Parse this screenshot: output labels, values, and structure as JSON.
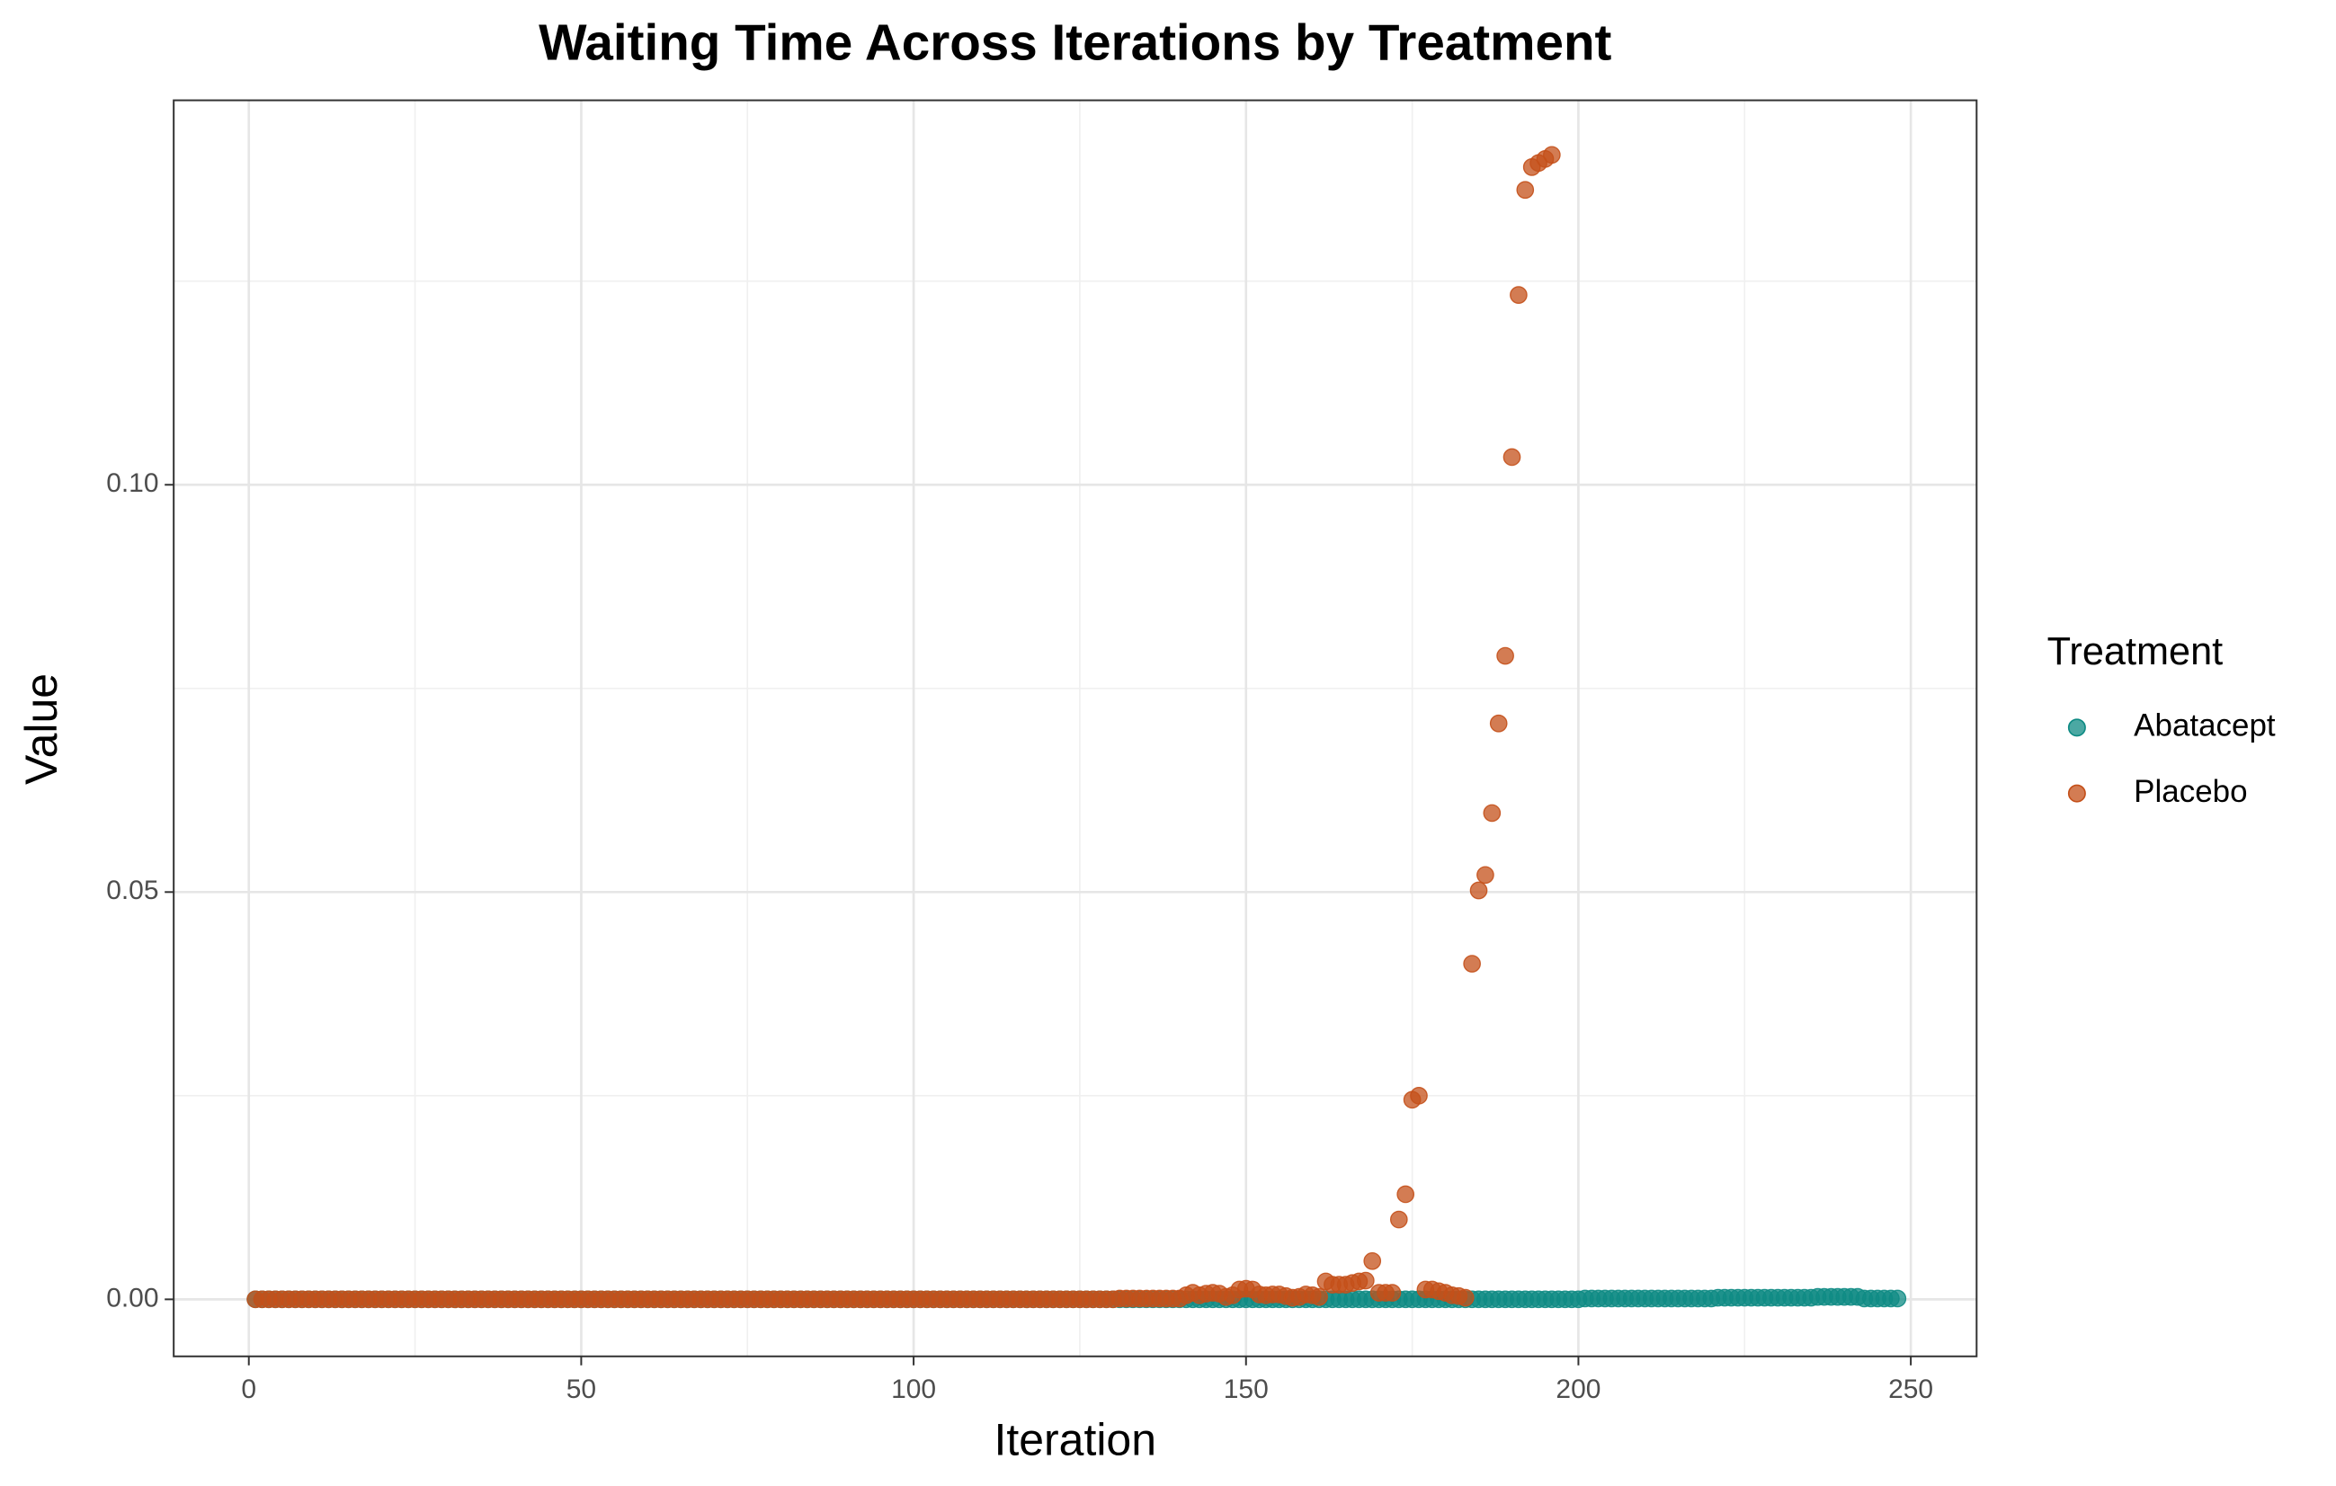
{
  "chart_data": {
    "type": "scatter",
    "title": "Waiting Time Across Iterations by Treatment",
    "x_label": "Iteration",
    "y_label": "Value",
    "legend_title": "Treatment",
    "legend_position": "right",
    "grid": true,
    "minor_grid": true,
    "xlim": [
      -11.3,
      259.9
    ],
    "xticks": [
      0,
      50,
      100,
      150,
      200,
      250
    ],
    "ylim": [
      -0.007,
      0.1472
    ],
    "yticks": [
      {
        "value": 0,
        "label": "0.00"
      },
      {
        "value": 0.05,
        "label": "0.05"
      },
      {
        "value": 0.1,
        "label": "0.10"
      }
    ],
    "series": [
      {
        "name": "Abatacept",
        "color": "#0f8b84",
        "x": [
          1,
          2,
          3,
          4,
          5,
          6,
          7,
          8,
          9,
          10,
          11,
          12,
          13,
          14,
          15,
          16,
          17,
          18,
          19,
          20,
          21,
          22,
          23,
          24,
          25,
          26,
          27,
          28,
          29,
          30,
          31,
          32,
          33,
          34,
          35,
          36,
          37,
          38,
          39,
          40,
          41,
          42,
          43,
          44,
          45,
          46,
          47,
          48,
          49,
          50,
          51,
          52,
          53,
          54,
          55,
          56,
          57,
          58,
          59,
          60,
          61,
          62,
          63,
          64,
          65,
          66,
          67,
          68,
          69,
          70,
          71,
          72,
          73,
          74,
          75,
          76,
          77,
          78,
          79,
          80,
          81,
          82,
          83,
          84,
          85,
          86,
          87,
          88,
          89,
          90,
          91,
          92,
          93,
          94,
          95,
          96,
          97,
          98,
          99,
          100,
          101,
          102,
          103,
          104,
          105,
          106,
          107,
          108,
          109,
          110,
          111,
          112,
          113,
          114,
          115,
          116,
          117,
          118,
          119,
          120,
          121,
          122,
          123,
          124,
          125,
          126,
          127,
          128,
          129,
          130,
          131,
          132,
          133,
          134,
          135,
          136,
          137,
          138,
          139,
          140,
          141,
          142,
          143,
          144,
          145,
          146,
          147,
          148,
          149,
          150,
          151,
          152,
          153,
          154,
          155,
          156,
          157,
          158,
          159,
          160,
          161,
          162,
          163,
          164,
          165,
          166,
          167,
          168,
          169,
          170,
          171,
          172,
          173,
          174,
          175,
          176,
          177,
          178,
          179,
          180,
          181,
          182,
          183,
          184,
          185,
          186,
          187,
          188,
          189,
          190,
          191,
          192,
          193,
          194,
          195,
          196,
          197,
          198,
          199,
          200,
          201,
          202,
          203,
          204,
          205,
          206,
          207,
          208,
          209,
          210,
          211,
          212,
          213,
          214,
          215,
          216,
          217,
          218,
          219,
          220,
          221,
          222,
          223,
          224,
          225,
          226,
          227,
          228,
          229,
          230,
          231,
          232,
          233,
          234,
          235,
          236,
          237,
          238,
          239,
          240,
          241,
          242,
          243,
          244,
          245,
          246,
          247,
          248
        ],
        "values": [
          0,
          0,
          0,
          0,
          0,
          0,
          0,
          0,
          0,
          0,
          0,
          0,
          0,
          0,
          0,
          0,
          0,
          0,
          0,
          0,
          0,
          0,
          0,
          0,
          0,
          0,
          0,
          0,
          0,
          0,
          0,
          0,
          0,
          0,
          0,
          0,
          0,
          0,
          0,
          0,
          0,
          0,
          0,
          0,
          0,
          0,
          0,
          0,
          0,
          0,
          0,
          0,
          0,
          0,
          0,
          0,
          0,
          0,
          0,
          0,
          0,
          0,
          0,
          0,
          0,
          0,
          0,
          0,
          0,
          0,
          0,
          0,
          0,
          0,
          0,
          0,
          0,
          0,
          0,
          0,
          0,
          0,
          0,
          0,
          0,
          0,
          0,
          0,
          0,
          0,
          0,
          0,
          0,
          0,
          0,
          0,
          0,
          0,
          0,
          0,
          0,
          0,
          0,
          0,
          0,
          0,
          0,
          0,
          0,
          0,
          0,
          0,
          0,
          0,
          0,
          0,
          0,
          0,
          0,
          0,
          0,
          0,
          0,
          0,
          0,
          0,
          0,
          0,
          0,
          0,
          0,
          0,
          0,
          0,
          0,
          0,
          0,
          0,
          0,
          0,
          0,
          0,
          0,
          0,
          0,
          0,
          0,
          0,
          0,
          0,
          0,
          0,
          0,
          0,
          0,
          0,
          0,
          0,
          0,
          0,
          0,
          0,
          0,
          0,
          0,
          0,
          0,
          0,
          0,
          0,
          0,
          0,
          0,
          0,
          0,
          0,
          0,
          0,
          0,
          0,
          0,
          0,
          0,
          0,
          0,
          0,
          0,
          0,
          0,
          0,
          0,
          0,
          0,
          0,
          0,
          0,
          0,
          0,
          0,
          0,
          0.0001,
          0.0001,
          0.0001,
          0.0001,
          0.0001,
          0.0001,
          0.0001,
          0.0001,
          0.0001,
          0.0001,
          0.0001,
          0.0001,
          0.0001,
          0.0001,
          0.0001,
          0.0001,
          0.0001,
          0.0001,
          0.0001,
          0.0001,
          0.0002,
          0.0002,
          0.0002,
          0.0002,
          0.0002,
          0.0002,
          0.0002,
          0.0002,
          0.0002,
          0.0002,
          0.0002,
          0.0002,
          0.0002,
          0.0002,
          0.0002,
          0.0003,
          0.0003,
          0.0003,
          0.0003,
          0.0003,
          0.0003,
          0.0003,
          0.0001,
          0.0001,
          0.0001,
          0.0001,
          0.0001,
          0.0001
        ]
      },
      {
        "name": "Placebo",
        "color": "#c4501a",
        "x": [
          1,
          2,
          3,
          4,
          5,
          6,
          7,
          8,
          9,
          10,
          11,
          12,
          13,
          14,
          15,
          16,
          17,
          18,
          19,
          20,
          21,
          22,
          23,
          24,
          25,
          26,
          27,
          28,
          29,
          30,
          31,
          32,
          33,
          34,
          35,
          36,
          37,
          38,
          39,
          40,
          41,
          42,
          43,
          44,
          45,
          46,
          47,
          48,
          49,
          50,
          51,
          52,
          53,
          54,
          55,
          56,
          57,
          58,
          59,
          60,
          61,
          62,
          63,
          64,
          65,
          66,
          67,
          68,
          69,
          70,
          71,
          72,
          73,
          74,
          75,
          76,
          77,
          78,
          79,
          80,
          81,
          82,
          83,
          84,
          85,
          86,
          87,
          88,
          89,
          90,
          91,
          92,
          93,
          94,
          95,
          96,
          97,
          98,
          99,
          100,
          101,
          102,
          103,
          104,
          105,
          106,
          107,
          108,
          109,
          110,
          111,
          112,
          113,
          114,
          115,
          116,
          117,
          118,
          119,
          120,
          121,
          122,
          123,
          124,
          125,
          126,
          127,
          128,
          129,
          130,
          131,
          132,
          133,
          134,
          135,
          136,
          137,
          138,
          139,
          140,
          141,
          142,
          143,
          144,
          145,
          146,
          147,
          148,
          149,
          150,
          151,
          152,
          153,
          154,
          155,
          156,
          157,
          158,
          159,
          160,
          161,
          162,
          163,
          164,
          165,
          166,
          167,
          168,
          169,
          170,
          171,
          172,
          173,
          174,
          175,
          176,
          177,
          178,
          179,
          180,
          181,
          182,
          183,
          184,
          185,
          186,
          187,
          188,
          189,
          190,
          191,
          192,
          193,
          194,
          195,
          196
        ],
        "values": [
          0,
          0,
          0,
          0,
          0,
          0,
          0,
          0,
          0,
          0,
          0,
          0,
          0,
          0,
          0,
          0,
          0,
          0,
          0,
          0,
          0,
          0,
          0,
          0,
          0,
          0,
          0,
          0,
          0,
          0,
          0,
          0,
          0,
          0,
          0,
          0,
          0,
          0,
          0,
          0,
          0,
          0,
          0,
          0,
          0,
          0,
          0,
          0,
          0,
          0,
          0,
          0,
          0,
          0,
          0,
          0,
          0,
          0,
          0,
          0,
          0,
          0,
          0,
          0,
          0,
          0,
          0,
          0,
          0,
          0,
          0,
          0,
          0,
          0,
          0,
          0,
          0,
          0,
          0,
          0,
          0,
          0,
          0,
          0,
          0,
          0,
          0,
          0,
          0,
          0,
          0,
          0,
          0,
          0,
          0,
          0,
          0,
          0,
          0,
          0,
          0,
          0,
          0,
          0,
          0,
          0,
          0,
          0,
          0,
          0,
          0,
          0,
          0,
          0,
          0,
          0,
          0,
          0,
          0,
          0,
          0,
          0,
          0,
          0,
          0,
          0,
          0,
          0,
          0,
          0,
          0.0001,
          0.0001,
          0.0001,
          0.0001,
          0.0001,
          0.0001,
          0.0001,
          0.0001,
          0.0001,
          0.0001,
          0.0005,
          0.0008,
          0.0005,
          0.0007,
          0.0008,
          0.0007,
          0.0003,
          0.0005,
          0.0012,
          0.0013,
          0.0012,
          0.0006,
          0.0005,
          0.0006,
          0.0006,
          0.0004,
          0.0002,
          0.0003,
          0.0006,
          0.0005,
          0.0003,
          0.0022,
          0.0018,
          0.0018,
          0.0018,
          0.002,
          0.0022,
          0.0023,
          0.0047,
          0.0008,
          0.0008,
          0.0008,
          0.0098,
          0.0129,
          0.0245,
          0.025,
          0.0012,
          0.0012,
          0.001,
          0.0008,
          0.0005,
          0.0004,
          0.0002,
          0.0412,
          0.0502,
          0.0521,
          0.0597,
          0.0707,
          0.079,
          0.1034,
          0.1233,
          0.1362,
          0.139,
          0.1395,
          0.14,
          0.1405
        ]
      }
    ]
  }
}
